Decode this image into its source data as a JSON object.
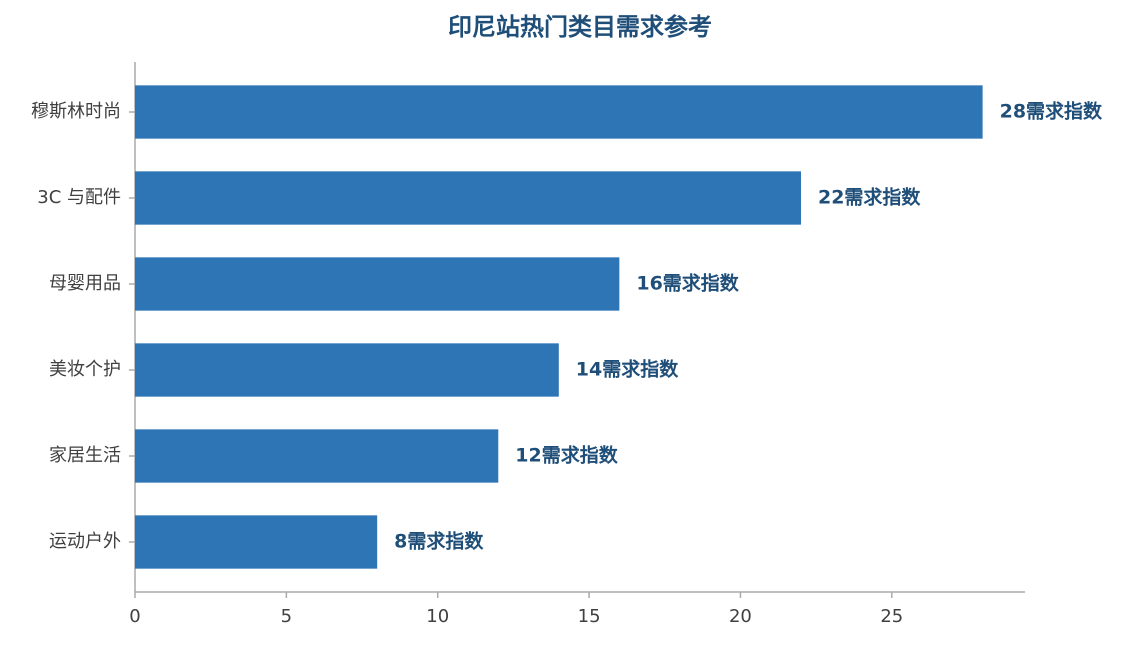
{
  "chart_data": {
    "type": "bar",
    "orientation": "horizontal",
    "title": "印尼站热门类目需求参考",
    "categories": [
      "穆斯林时尚",
      "3C 与配件",
      "母婴用品",
      "美妆个护",
      "家居生活",
      "运动户外"
    ],
    "values": [
      28,
      22,
      16,
      14,
      12,
      8
    ],
    "value_labels": [
      "28需求指数",
      "22需求指数",
      "16需求指数",
      "14需求指数",
      "12需求指数",
      "8需求指数"
    ],
    "color": "#2e75b6",
    "xlim": [
      0,
      29.4
    ],
    "xticks": [
      0,
      5,
      10,
      15,
      20,
      25
    ],
    "grid": false
  }
}
